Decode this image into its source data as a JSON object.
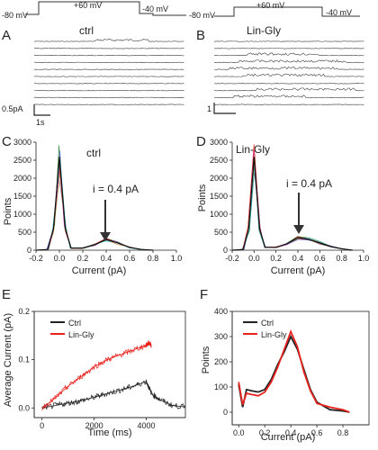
{
  "protocol": {
    "left": {
      "hold": "-80 mV",
      "step": "+60 mV",
      "post": "-40 mV",
      "end": "-80 mV"
    },
    "right": {
      "step": "+60 mV",
      "post": "-40 mV"
    }
  },
  "panels": {
    "A": {
      "letter": "A",
      "title": "ctrl",
      "scale_current": "0.5pA",
      "scale_time": "1s"
    },
    "B": {
      "letter": "B",
      "title": "Lin-Gly",
      "scale_current": "1"
    },
    "C": {
      "letter": "C",
      "title": "ctrl",
      "annotation": "i = 0.4 pA",
      "xlabel": "Current (pA)",
      "ylabel": "Points"
    },
    "D": {
      "letter": "D",
      "title": "Lin-Gly",
      "annotation": "i = 0.4 pA",
      "xlabel": "Current (pA)",
      "ylabel": "Points"
    },
    "E": {
      "letter": "E",
      "xlabel": "Time (ms)",
      "ylabel": "Average Current (pA)"
    },
    "F": {
      "letter": "F",
      "xlabel": "Current (pA)",
      "ylabel": "Points"
    }
  },
  "colors": {
    "ctrl": "#222222",
    "lin_gly": "#e8231e",
    "trace": "#555555"
  },
  "chart_data": [
    {
      "id": "C",
      "type": "line",
      "xlabel": "Current (pA)",
      "ylabel": "Points",
      "xlim": [
        -0.2,
        1.0
      ],
      "ylim": [
        0,
        3000
      ],
      "xticks": [
        "-0.2",
        "0.0",
        "0.2",
        "0.4",
        "0.6",
        "0.8",
        "1.0"
      ],
      "yticks": [
        "0",
        "500",
        "1000",
        "1500",
        "2000",
        "2500",
        "3000"
      ],
      "series": [
        {
          "x": [
            -0.2,
            -0.1,
            -0.05,
            0.0,
            0.05,
            0.1,
            0.2,
            0.3,
            0.4,
            0.5,
            0.6,
            0.7,
            0.8
          ],
          "values": [
            0,
            20,
            600,
            2600,
            600,
            60,
            60,
            150,
            300,
            200,
            80,
            20,
            0
          ]
        }
      ]
    },
    {
      "id": "D",
      "type": "line",
      "xlabel": "Current (pA)",
      "ylabel": "Points",
      "xlim": [
        -0.2,
        1.0
      ],
      "ylim": [
        0,
        3000
      ],
      "xticks": [
        "-0.2",
        "0.0",
        "0.2",
        "0.4",
        "0.6",
        "0.8",
        "1.0"
      ],
      "yticks": [
        "0",
        "500",
        "1000",
        "1500",
        "2000",
        "2500",
        "3000"
      ],
      "series": [
        {
          "x": [
            -0.2,
            -0.1,
            -0.05,
            0.0,
            0.05,
            0.1,
            0.2,
            0.3,
            0.4,
            0.5,
            0.6,
            0.7,
            0.8,
            0.9
          ],
          "values": [
            0,
            20,
            600,
            2600,
            600,
            80,
            80,
            180,
            350,
            300,
            200,
            100,
            40,
            0
          ]
        }
      ]
    },
    {
      "id": "E",
      "type": "line",
      "xlabel": "Time (ms)",
      "ylabel": "Average Current (pA)",
      "xlim": [
        -300,
        5500
      ],
      "ylim": [
        -0.02,
        0.2
      ],
      "xticks": [
        "0",
        "2000",
        "4000"
      ],
      "yticks": [
        "0.0",
        "0.1",
        "0.2"
      ],
      "legend": "top-left",
      "series": [
        {
          "name": "Ctrl",
          "x": [
            0,
            500,
            1000,
            1500,
            2000,
            2500,
            3000,
            3500,
            4000,
            4200,
            4500,
            5000,
            5500
          ],
          "values": [
            0.0,
            0.005,
            0.01,
            0.015,
            0.022,
            0.03,
            0.037,
            0.045,
            0.055,
            0.03,
            0.018,
            0.005,
            0.002
          ]
        },
        {
          "name": "Lin-Gly",
          "x": [
            0,
            500,
            1000,
            1500,
            2000,
            2500,
            3000,
            3500,
            4000,
            4100,
            4200
          ],
          "values": [
            0.0,
            0.02,
            0.045,
            0.065,
            0.085,
            0.1,
            0.11,
            0.12,
            0.13,
            0.135,
            0.13
          ]
        }
      ]
    },
    {
      "id": "F",
      "type": "line",
      "xlabel": "Current (pA)",
      "ylabel": "Points",
      "xlim": [
        -0.05,
        1.0
      ],
      "ylim": [
        -50,
        400
      ],
      "xticks": [
        "0.0",
        "0.2",
        "0.4",
        "0.6",
        "0.8"
      ],
      "yticks": [
        "0",
        "100",
        "200",
        "300",
        "400"
      ],
      "legend": "top-left",
      "series": [
        {
          "name": "Ctrl",
          "x": [
            0.0,
            0.03,
            0.06,
            0.1,
            0.15,
            0.2,
            0.25,
            0.3,
            0.35,
            0.4,
            0.45,
            0.5,
            0.55,
            0.6,
            0.7,
            0.8,
            0.85
          ],
          "values": [
            110,
            20,
            90,
            85,
            80,
            90,
            130,
            190,
            240,
            300,
            250,
            170,
            90,
            40,
            10,
            5,
            0
          ]
        },
        {
          "name": "Lin-Gly",
          "x": [
            0.0,
            0.03,
            0.06,
            0.1,
            0.15,
            0.2,
            0.25,
            0.3,
            0.35,
            0.4,
            0.45,
            0.5,
            0.55,
            0.6,
            0.7,
            0.8,
            0.85
          ],
          "values": [
            120,
            30,
            75,
            70,
            65,
            80,
            120,
            180,
            250,
            320,
            260,
            160,
            85,
            35,
            20,
            10,
            0
          ]
        }
      ]
    }
  ]
}
